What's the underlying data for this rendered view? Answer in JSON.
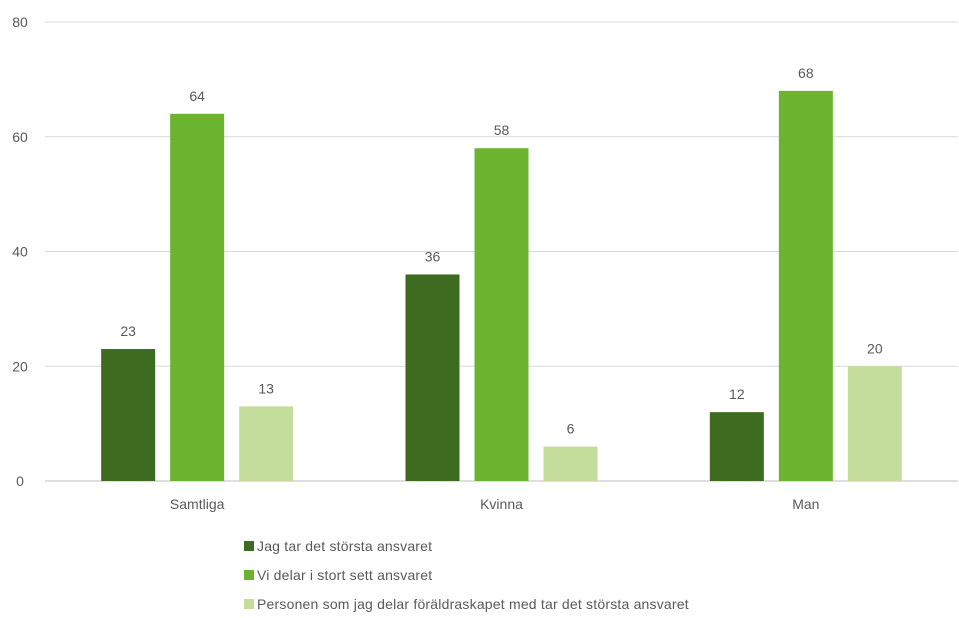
{
  "chart_data": {
    "type": "bar",
    "categories": [
      "Samtliga",
      "Kvinna",
      "Man"
    ],
    "series": [
      {
        "name": "Jag tar det största ansvaret",
        "color": "#3d6b1f",
        "values": [
          23,
          36,
          12
        ]
      },
      {
        "name": "Vi delar i stort sett ansvaret",
        "color": "#6ab42f",
        "values": [
          64,
          58,
          68
        ]
      },
      {
        "name": "Personen som jag delar föräldraskapet med tar det största ansvaret",
        "color": "#c5dd9b",
        "values": [
          13,
          6,
          20
        ]
      }
    ],
    "ylim": [
      0,
      80
    ],
    "yticks": [
      0,
      20,
      40,
      60,
      80
    ],
    "grid": true,
    "legend_position": "bottom",
    "title": "",
    "xlabel": "",
    "ylabel": ""
  }
}
